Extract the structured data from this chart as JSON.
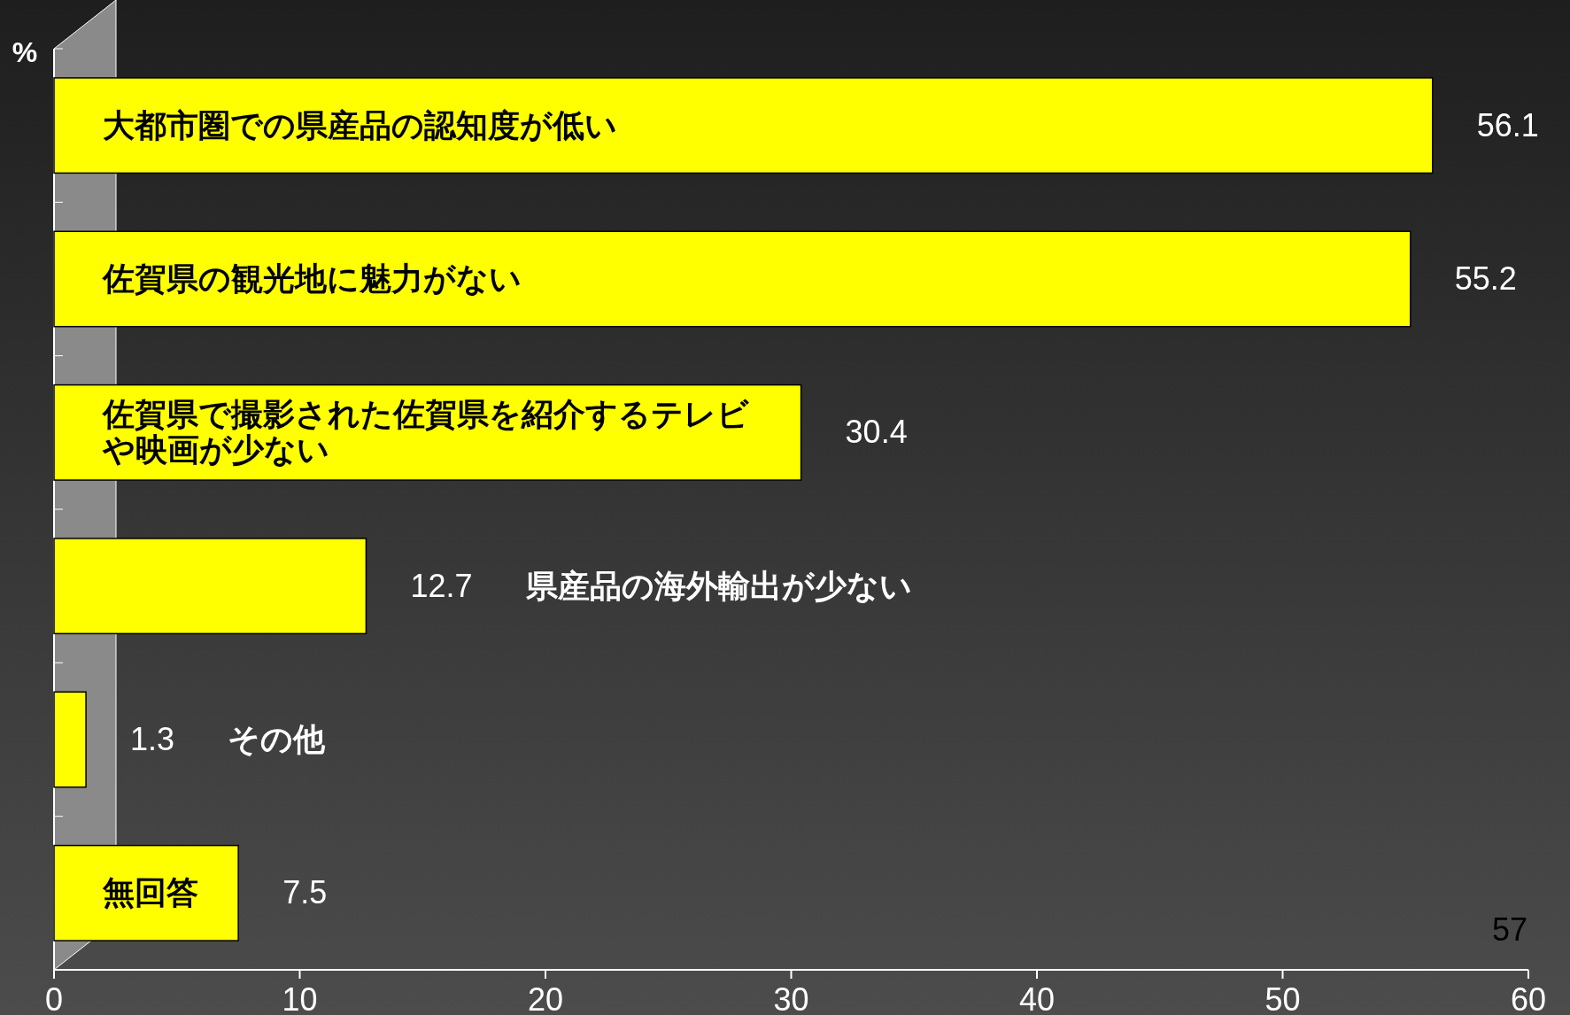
{
  "chart_data": {
    "type": "bar",
    "orientation": "horizontal",
    "ylabel": "%",
    "categories": [
      "大都市圏での県産品の認知度が低い",
      "佐賀県の観光地に魅力がない",
      "佐賀県で撮影された佐賀県を紹介するテレビや映画が少ない",
      "県産品の海外輸出が少ない",
      "その他",
      "無回答"
    ],
    "values": [
      56.1,
      55.2,
      30.4,
      12.7,
      1.3,
      7.5
    ],
    "color": "#ffff00",
    "data_labels": true,
    "xlim": [
      0,
      60
    ],
    "xticks": [
      0,
      10,
      20,
      30,
      40,
      50,
      60
    ],
    "grid": false,
    "annotations": [
      "57"
    ]
  }
}
